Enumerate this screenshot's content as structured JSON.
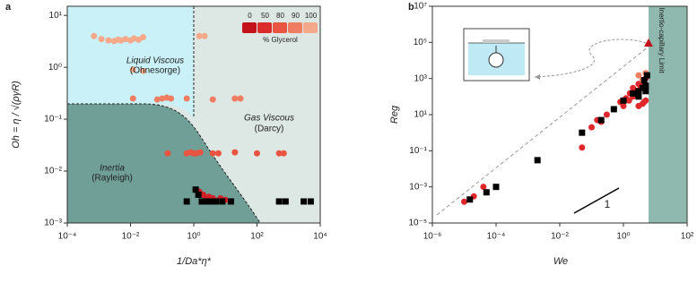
{
  "chart_data": [
    {
      "type": "scatter",
      "panel": "a",
      "xlabel": "1/Da*η*",
      "ylabel": "Oh = η / √(ργR)",
      "xscale": "log",
      "yscale": "log",
      "xlim": [
        0.0001,
        10000
      ],
      "ylim": [
        0.001,
        15
      ],
      "xticks": [
        {
          "value": 0.0001,
          "label": "10⁻⁴"
        },
        {
          "value": 0.01,
          "label": "10⁻²"
        },
        {
          "value": 1,
          "label": "10⁰"
        },
        {
          "value": 100,
          "label": "10²"
        },
        {
          "value": 10000,
          "label": "10⁴"
        }
      ],
      "yticks": [
        {
          "value": 0.001,
          "label": "10⁻³"
        },
        {
          "value": 0.01,
          "label": "10⁻²"
        },
        {
          "value": 0.1,
          "label": "10⁻¹"
        },
        {
          "value": 1,
          "label": "10⁰"
        },
        {
          "value": 10,
          "label": "10¹"
        }
      ],
      "annotations": [
        "Liquid Viscous",
        "(Ohnesorge)",
        "Gas Viscous",
        "(Darcy)",
        "Inertia",
        "(Rayleigh)"
      ],
      "colorbar": {
        "title": "% Glycerol",
        "levels": [
          0,
          50,
          80,
          90,
          100
        ],
        "colors": [
          "#c4121c",
          "#dc2b2b",
          "#e8543f",
          "#f07d62",
          "#f6a98a"
        ]
      },
      "series": [
        {
          "color": "#f6a98a",
          "marker": "circle",
          "x": [
            0.0007,
            0.0012,
            0.002,
            0.003,
            0.004,
            0.005,
            0.007,
            0.01,
            0.013,
            0.018,
            0.025,
            0.012,
            0.025,
            1.5,
            2.2
          ],
          "y": [
            4,
            3.5,
            3.3,
            3.2,
            3.4,
            3.3,
            3.5,
            3.3,
            3.6,
            3.4,
            3.8,
            0.9,
            0.85,
            4,
            4
          ]
        },
        {
          "color": "#f07d62",
          "marker": "circle",
          "x": [
            0.012,
            0.07,
            0.1,
            0.14,
            0.19,
            0.6,
            4,
            20,
            30
          ],
          "y": [
            0.25,
            0.24,
            0.25,
            0.26,
            0.25,
            0.25,
            0.24,
            0.25,
            0.25
          ]
        },
        {
          "color": "#e8543f",
          "marker": "circle",
          "x": [
            0.15,
            0.6,
            0.8,
            1,
            1.2,
            1.6,
            4,
            6,
            20,
            100,
            500,
            700
          ],
          "y": [
            0.022,
            0.022,
            0.023,
            0.022,
            0.022,
            0.023,
            0.022,
            0.022,
            0.023,
            0.022,
            0.022,
            0.022
          ]
        },
        {
          "color": "#d21f26",
          "marker": "circle",
          "x": [
            1.5,
            2,
            2.5,
            3,
            3.5,
            4,
            5,
            7,
            10
          ],
          "y": [
            0.004,
            0.0035,
            0.003,
            0.0032,
            0.0028,
            0.003,
            0.0027,
            0.003,
            0.0028
          ]
        },
        {
          "color": "#000000",
          "marker": "square",
          "x": [
            1.15,
            1.4,
            0.6,
            1.8,
            2.5,
            3.5,
            5,
            8,
            15,
            500,
            800,
            3000,
            5000
          ],
          "y": [
            0.0044,
            0.0035,
            0.0026,
            0.0026,
            0.0026,
            0.0026,
            0.0026,
            0.0026,
            0.0026,
            0.0026,
            0.0026,
            0.0026,
            0.0026
          ]
        }
      ]
    },
    {
      "type": "scatter",
      "panel": "b",
      "xlabel": "We",
      "ylabel": "Reg",
      "xscale": "log",
      "yscale": "log",
      "xlim": [
        1e-06,
        100
      ],
      "ylim": [
        1e-05,
        10000000
      ],
      "xticks": [
        {
          "value": 1e-06,
          "label": "10⁻⁶"
        },
        {
          "value": 0.0001,
          "label": "10⁻⁴"
        },
        {
          "value": 0.01,
          "label": "10⁻²"
        },
        {
          "value": 1,
          "label": "10⁰"
        },
        {
          "value": 100,
          "label": "10²"
        }
      ],
      "yticks": [
        {
          "value": 1e-05,
          "label": "10⁻⁵"
        },
        {
          "value": 0.001,
          "label": "10⁻³"
        },
        {
          "value": 0.1,
          "label": "10⁻¹"
        },
        {
          "value": 10,
          "label": "10¹"
        },
        {
          "value": 1000,
          "label": "10³"
        },
        {
          "value": 100000,
          "label": "10⁵"
        },
        {
          "value": 10000000,
          "label": "10⁷"
        }
      ],
      "annotations": [
        "Inertio-capillary  Limit",
        "1"
      ],
      "series": [
        {
          "color": "#e0282c",
          "marker": "circle",
          "x": [
            1e-05,
            2e-05,
            4e-05,
            0.05,
            0.1,
            0.15,
            0.2,
            0.3,
            0.5,
            0.8,
            1,
            1.2,
            1.5,
            2,
            2.5,
            3,
            3.5,
            4,
            4.5,
            5,
            5,
            3,
            2,
            1.6,
            4,
            3,
            4.5,
            5
          ],
          "y": [
            0.00015,
            0.0003,
            0.001,
            0.15,
            2,
            5,
            4,
            10,
            20,
            50,
            30,
            80,
            60,
            100,
            200,
            150,
            300,
            500,
            700,
            400,
            1000,
            500,
            300,
            150,
            40,
            30,
            50,
            60
          ]
        },
        {
          "color": "#f07d62",
          "marker": "circle",
          "x": [
            3,
            5,
            4
          ],
          "y": [
            1500,
            2000,
            800
          ]
        },
        {
          "color": "#000000",
          "marker": "square",
          "x": [
            1.5e-05,
            5e-05,
            0.0001,
            0.002,
            0.05,
            0.2,
            0.5,
            1,
            2,
            3,
            4,
            5,
            5.5,
            3,
            4.5,
            5
          ],
          "y": [
            0.0002,
            0.0005,
            0.001,
            0.03,
            1,
            5,
            20,
            60,
            150,
            200,
            300,
            400,
            1500,
            100,
            800,
            200
          ]
        }
      ]
    }
  ]
}
